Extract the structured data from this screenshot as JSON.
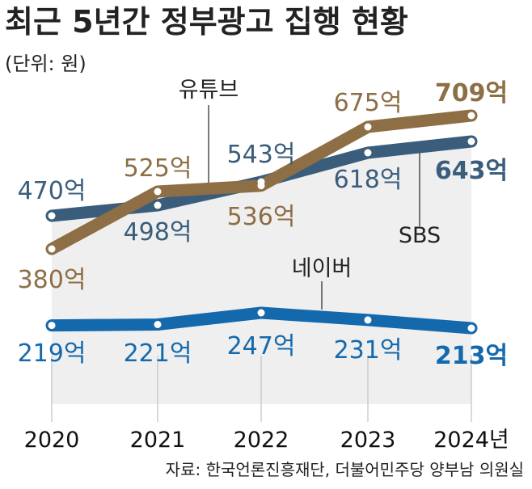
{
  "chart_data": {
    "type": "line",
    "title": "최근 5년간 정부광고 집행 현황",
    "unit_label": "(단위: 원)",
    "source": "자료: 한국언론진흥재단, 더불어민주당 양부남 의원실",
    "categories": [
      "2020",
      "2021",
      "2022",
      "2023",
      "2024"
    ],
    "category_labels": [
      "2020",
      "2021",
      "2022",
      "2023",
      "2024년"
    ],
    "series": [
      {
        "name": "SBS",
        "color": "#3a5d7c",
        "values": [
          470,
          498,
          543,
          618,
          643
        ],
        "labels": [
          "470억",
          "498억",
          "543억",
          "618억",
          "643억"
        ]
      },
      {
        "name": "유튜브",
        "color": "#8d6e45",
        "values": [
          380,
          525,
          536,
          675,
          709
        ],
        "labels": [
          "380억",
          "525억",
          "536억",
          "675억",
          "709억"
        ]
      },
      {
        "name": "네이버",
        "color": "#1469ad",
        "values": [
          219,
          221,
          247,
          231,
          213
        ],
        "labels": [
          "219억",
          "221억",
          "247억",
          "231억",
          "213억"
        ]
      }
    ]
  }
}
